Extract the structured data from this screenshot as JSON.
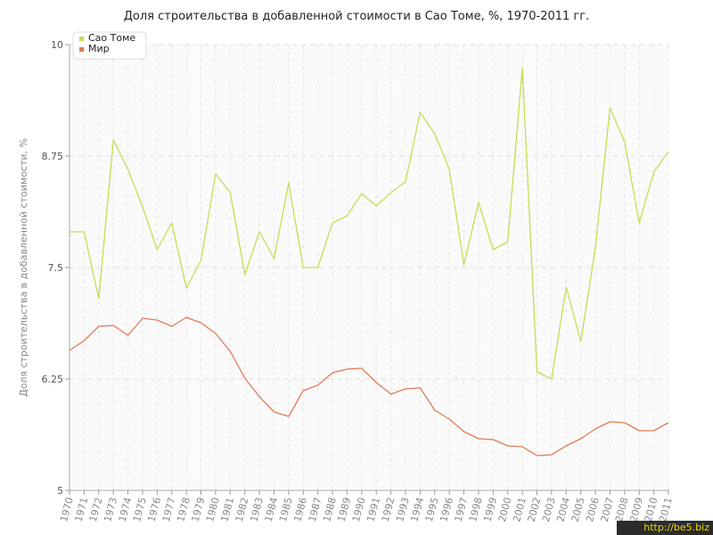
{
  "chart_data": {
    "type": "line",
    "title": "Доля строительства в добавленной стоимости в Сао Томе, %, 1970-2011 гг.",
    "xlabel": "",
    "ylabel": "Доля строительства в добавленной стоимости, %",
    "ylim": [
      5,
      10
    ],
    "yticks": [
      "5",
      "6.25",
      "7.5",
      "8.75",
      "10"
    ],
    "grid": true,
    "legend_position": "top-left",
    "x": [
      1970,
      1971,
      1972,
      1973,
      1974,
      1975,
      1976,
      1977,
      1978,
      1979,
      1980,
      1981,
      1982,
      1983,
      1984,
      1985,
      1986,
      1987,
      1988,
      1989,
      1990,
      1991,
      1992,
      1993,
      1994,
      1995,
      1996,
      1997,
      1998,
      1999,
      2000,
      2001,
      2002,
      2003,
      2004,
      2005,
      2006,
      2007,
      2008,
      2009,
      2010,
      2011
    ],
    "series": [
      {
        "name": "Сао Томе",
        "color": "#c5dd52",
        "values": [
          7.9,
          7.9,
          7.15,
          8.93,
          8.6,
          8.18,
          7.7,
          8.0,
          7.27,
          7.58,
          8.55,
          8.34,
          7.42,
          7.9,
          7.6,
          8.45,
          7.5,
          7.5,
          8.0,
          8.08,
          8.33,
          8.19,
          8.34,
          8.46,
          9.24,
          9.0,
          8.6,
          7.53,
          8.23,
          7.7,
          7.79,
          9.74,
          6.33,
          6.25,
          7.28,
          6.67,
          7.72,
          9.29,
          8.91,
          8.0,
          8.57,
          8.8
        ]
      },
      {
        "name": "Мир",
        "color": "#e07b53",
        "values": [
          6.57,
          6.68,
          6.84,
          6.85,
          6.74,
          6.93,
          6.91,
          6.84,
          6.94,
          6.88,
          6.76,
          6.56,
          6.26,
          6.05,
          5.88,
          5.83,
          6.12,
          6.18,
          6.32,
          6.36,
          6.37,
          6.21,
          6.08,
          6.14,
          6.15,
          5.9,
          5.8,
          5.66,
          5.58,
          5.57,
          5.5,
          5.49,
          5.39,
          5.4,
          5.5,
          5.58,
          5.69,
          5.77,
          5.76,
          5.67,
          5.67,
          5.76
        ]
      }
    ]
  },
  "watermark": "http://be5.biz"
}
